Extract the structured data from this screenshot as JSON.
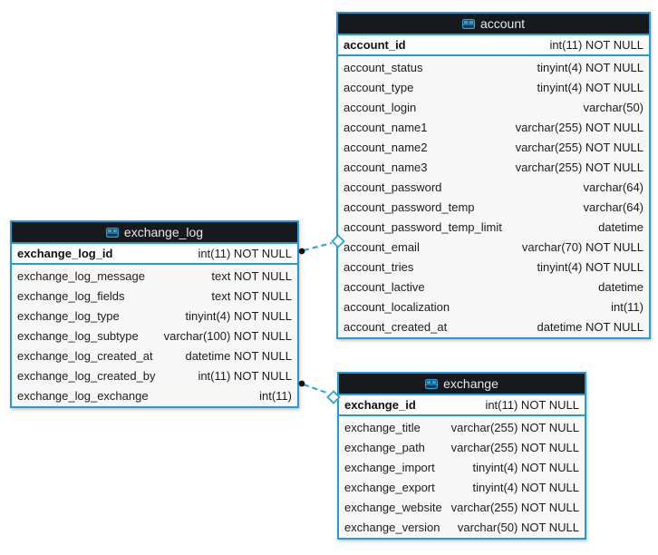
{
  "theme": {
    "accent": "#219cd8",
    "header_bg": "#17191d",
    "header_text": "#e6e9eb",
    "pk_bg": "#fdfdfd",
    "body_bg": "#f7f7f7",
    "text_color": "#1c1c1c",
    "connector_color": "#2aa0d8",
    "canvas_bg": "#ffffff"
  },
  "icons": {
    "table_header": "table-grid-icon"
  },
  "tables": [
    {
      "name": "exchange_log",
      "primary_key": {
        "name": "exchange_log_id",
        "type": "int(11) NOT NULL"
      },
      "columns": [
        {
          "name": "exchange_log_message",
          "type": "text NOT NULL"
        },
        {
          "name": "exchange_log_fields",
          "type": "text NOT NULL"
        },
        {
          "name": "exchange_log_type",
          "type": "tinyint(4) NOT NULL"
        },
        {
          "name": "exchange_log_subtype",
          "type": "varchar(100) NOT NULL"
        },
        {
          "name": "exchange_log_created_at",
          "type": "datetime NOT NULL"
        },
        {
          "name": "exchange_log_created_by",
          "type": "int(11) NOT NULL"
        },
        {
          "name": "exchange_log_exchange",
          "type": "int(11)"
        }
      ]
    },
    {
      "name": "account",
      "primary_key": {
        "name": "account_id",
        "type": "int(11) NOT NULL"
      },
      "columns": [
        {
          "name": "account_status",
          "type": "tinyint(4) NOT NULL"
        },
        {
          "name": "account_type",
          "type": "tinyint(4) NOT NULL"
        },
        {
          "name": "account_login",
          "type": "varchar(50)"
        },
        {
          "name": "account_name1",
          "type": "varchar(255) NOT NULL"
        },
        {
          "name": "account_name2",
          "type": "varchar(255) NOT NULL"
        },
        {
          "name": "account_name3",
          "type": "varchar(255) NOT NULL"
        },
        {
          "name": "account_password",
          "type": "varchar(64)"
        },
        {
          "name": "account_password_temp",
          "type": "varchar(64)"
        },
        {
          "name": "account_password_temp_limit",
          "type": "datetime"
        },
        {
          "name": "account_email",
          "type": "varchar(70) NOT NULL"
        },
        {
          "name": "account_tries",
          "type": "tinyint(4) NOT NULL"
        },
        {
          "name": "account_lactive",
          "type": "datetime"
        },
        {
          "name": "account_localization",
          "type": "int(11)"
        },
        {
          "name": "account_created_at",
          "type": "datetime NOT NULL"
        }
      ]
    },
    {
      "name": "exchange",
      "primary_key": {
        "name": "exchange_id",
        "type": "int(11) NOT NULL"
      },
      "columns": [
        {
          "name": "exchange_title",
          "type": "varchar(255) NOT NULL"
        },
        {
          "name": "exchange_path",
          "type": "varchar(255) NOT NULL"
        },
        {
          "name": "exchange_import",
          "type": "tinyint(4) NOT NULL"
        },
        {
          "name": "exchange_export",
          "type": "tinyint(4) NOT NULL"
        },
        {
          "name": "exchange_website",
          "type": "varchar(255) NOT NULL"
        },
        {
          "name": "exchange_version",
          "type": "varchar(50) NOT NULL"
        }
      ]
    }
  ],
  "relationships": [
    {
      "from_table": "exchange_log",
      "to_table": "account",
      "line_style": "dashed"
    },
    {
      "from_table": "exchange_log",
      "to_table": "exchange",
      "line_style": "dashed"
    }
  ]
}
